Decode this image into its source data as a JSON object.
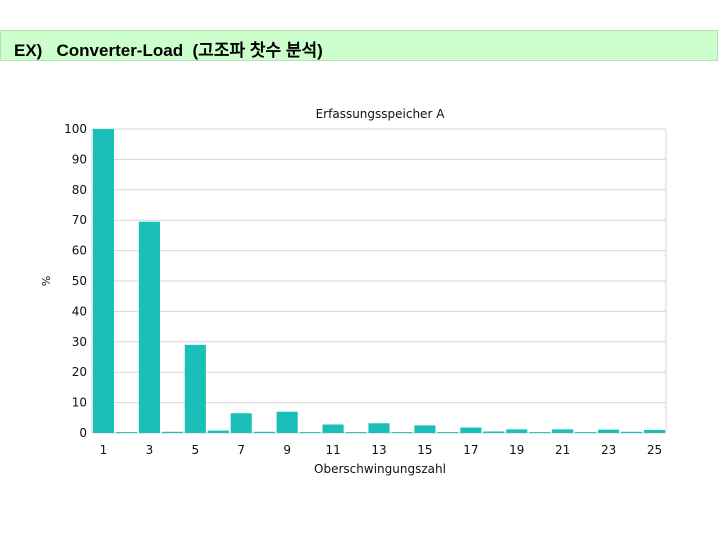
{
  "header": {
    "title": "EX)   Converter-Load  (고조파 찻수 분석)"
  },
  "colors": {
    "bar": "#1abfb8",
    "grid": "#d6d6d6",
    "title_bg": "#ccffcc"
  },
  "chart_data": {
    "type": "bar",
    "title": "Erfassungsspeicher A",
    "xlabel": "Oberschwingungszahl",
    "ylabel": "%",
    "ylim": [
      0,
      100
    ],
    "yticks": [
      0,
      10,
      20,
      30,
      40,
      50,
      60,
      70,
      80,
      90,
      100
    ],
    "xtick_labels": [
      "1",
      "3",
      "5",
      "7",
      "9",
      "11",
      "13",
      "15",
      "17",
      "19",
      "21",
      "23",
      "25"
    ],
    "grid": true,
    "categories": [
      "1",
      "2",
      "3",
      "4",
      "5",
      "6",
      "7",
      "8",
      "9",
      "10",
      "11",
      "12",
      "13",
      "14",
      "15",
      "16",
      "17",
      "18",
      "19",
      "20",
      "21",
      "22",
      "23",
      "24",
      "25"
    ],
    "values": [
      100,
      0.3,
      69.5,
      0.4,
      29,
      0.8,
      6.5,
      0.4,
      7,
      0.3,
      2.8,
      0.3,
      3.2,
      0.3,
      2.5,
      0.3,
      1.8,
      0.5,
      1.2,
      0.3,
      1.2,
      0.3,
      1.1,
      0.4,
      1.0
    ]
  }
}
